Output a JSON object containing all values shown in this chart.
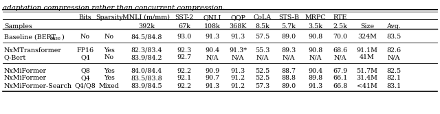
{
  "title_text": "adaptation compression rather than concurrent compression.",
  "col_headers_row1": [
    "",
    "Bits",
    "Sparsity",
    "MNLI (m/mm)",
    "SST-2",
    "QNLI",
    "QQP",
    "CoLA",
    "STS-B",
    "MRPC",
    "RTE",
    "",
    ""
  ],
  "col_headers_row2": [
    "Samples",
    "",
    "",
    "392k",
    "67k",
    "108k",
    "368K",
    "8.5k",
    "5.7k",
    "3.5k",
    "2.5k",
    "Size",
    "Avg."
  ],
  "rows": [
    [
      "Baseline (BERTbase)",
      "No",
      "No",
      "84.5/84.8",
      "93.0",
      "91.3",
      "91.3",
      "57.5",
      "89.0",
      "90.8",
      "70.0",
      "324M",
      "83.5"
    ],
    [
      "NxMTransformer",
      "FP16",
      "Yes",
      "82.3/83.4",
      "92.3",
      "90.4",
      "91.3*",
      "55.3",
      "89.3",
      "90.8",
      "68.6",
      "91.1M",
      "82.6"
    ],
    [
      "Q-Bert",
      "Q4",
      "No",
      "83.9/84.2",
      "92.7",
      "N/A",
      "N/A",
      "N/A",
      "N/A",
      "N/A",
      "N/A",
      "41M",
      "N/A"
    ],
    [
      "NxMiFormer",
      "Q8",
      "Yes",
      "84.0/84.4",
      "92.2",
      "90.9",
      "91.3",
      "52.5",
      "88.7",
      "90.4",
      "67.9",
      "51.7M",
      "82.5"
    ],
    [
      "NxMiFormer",
      "Q4",
      "Yes",
      "83.5/83.8",
      "92.1",
      "90.7",
      "91.2",
      "52.5",
      "88.8",
      "89.8",
      "66.1",
      "31.4M",
      "82.1"
    ],
    [
      "NxMiFormer-Search",
      "Q4/Q8",
      "Mixed",
      "83.9/84.5",
      "92.2",
      "91.3",
      "91.2",
      "57.3",
      "89.0",
      "91.3",
      "66.8",
      "<41M",
      "83.1"
    ]
  ],
  "font_size": 6.8,
  "title_fontsize": 7.5,
  "figsize": [
    6.4,
    1.66
  ],
  "dpi": 100
}
